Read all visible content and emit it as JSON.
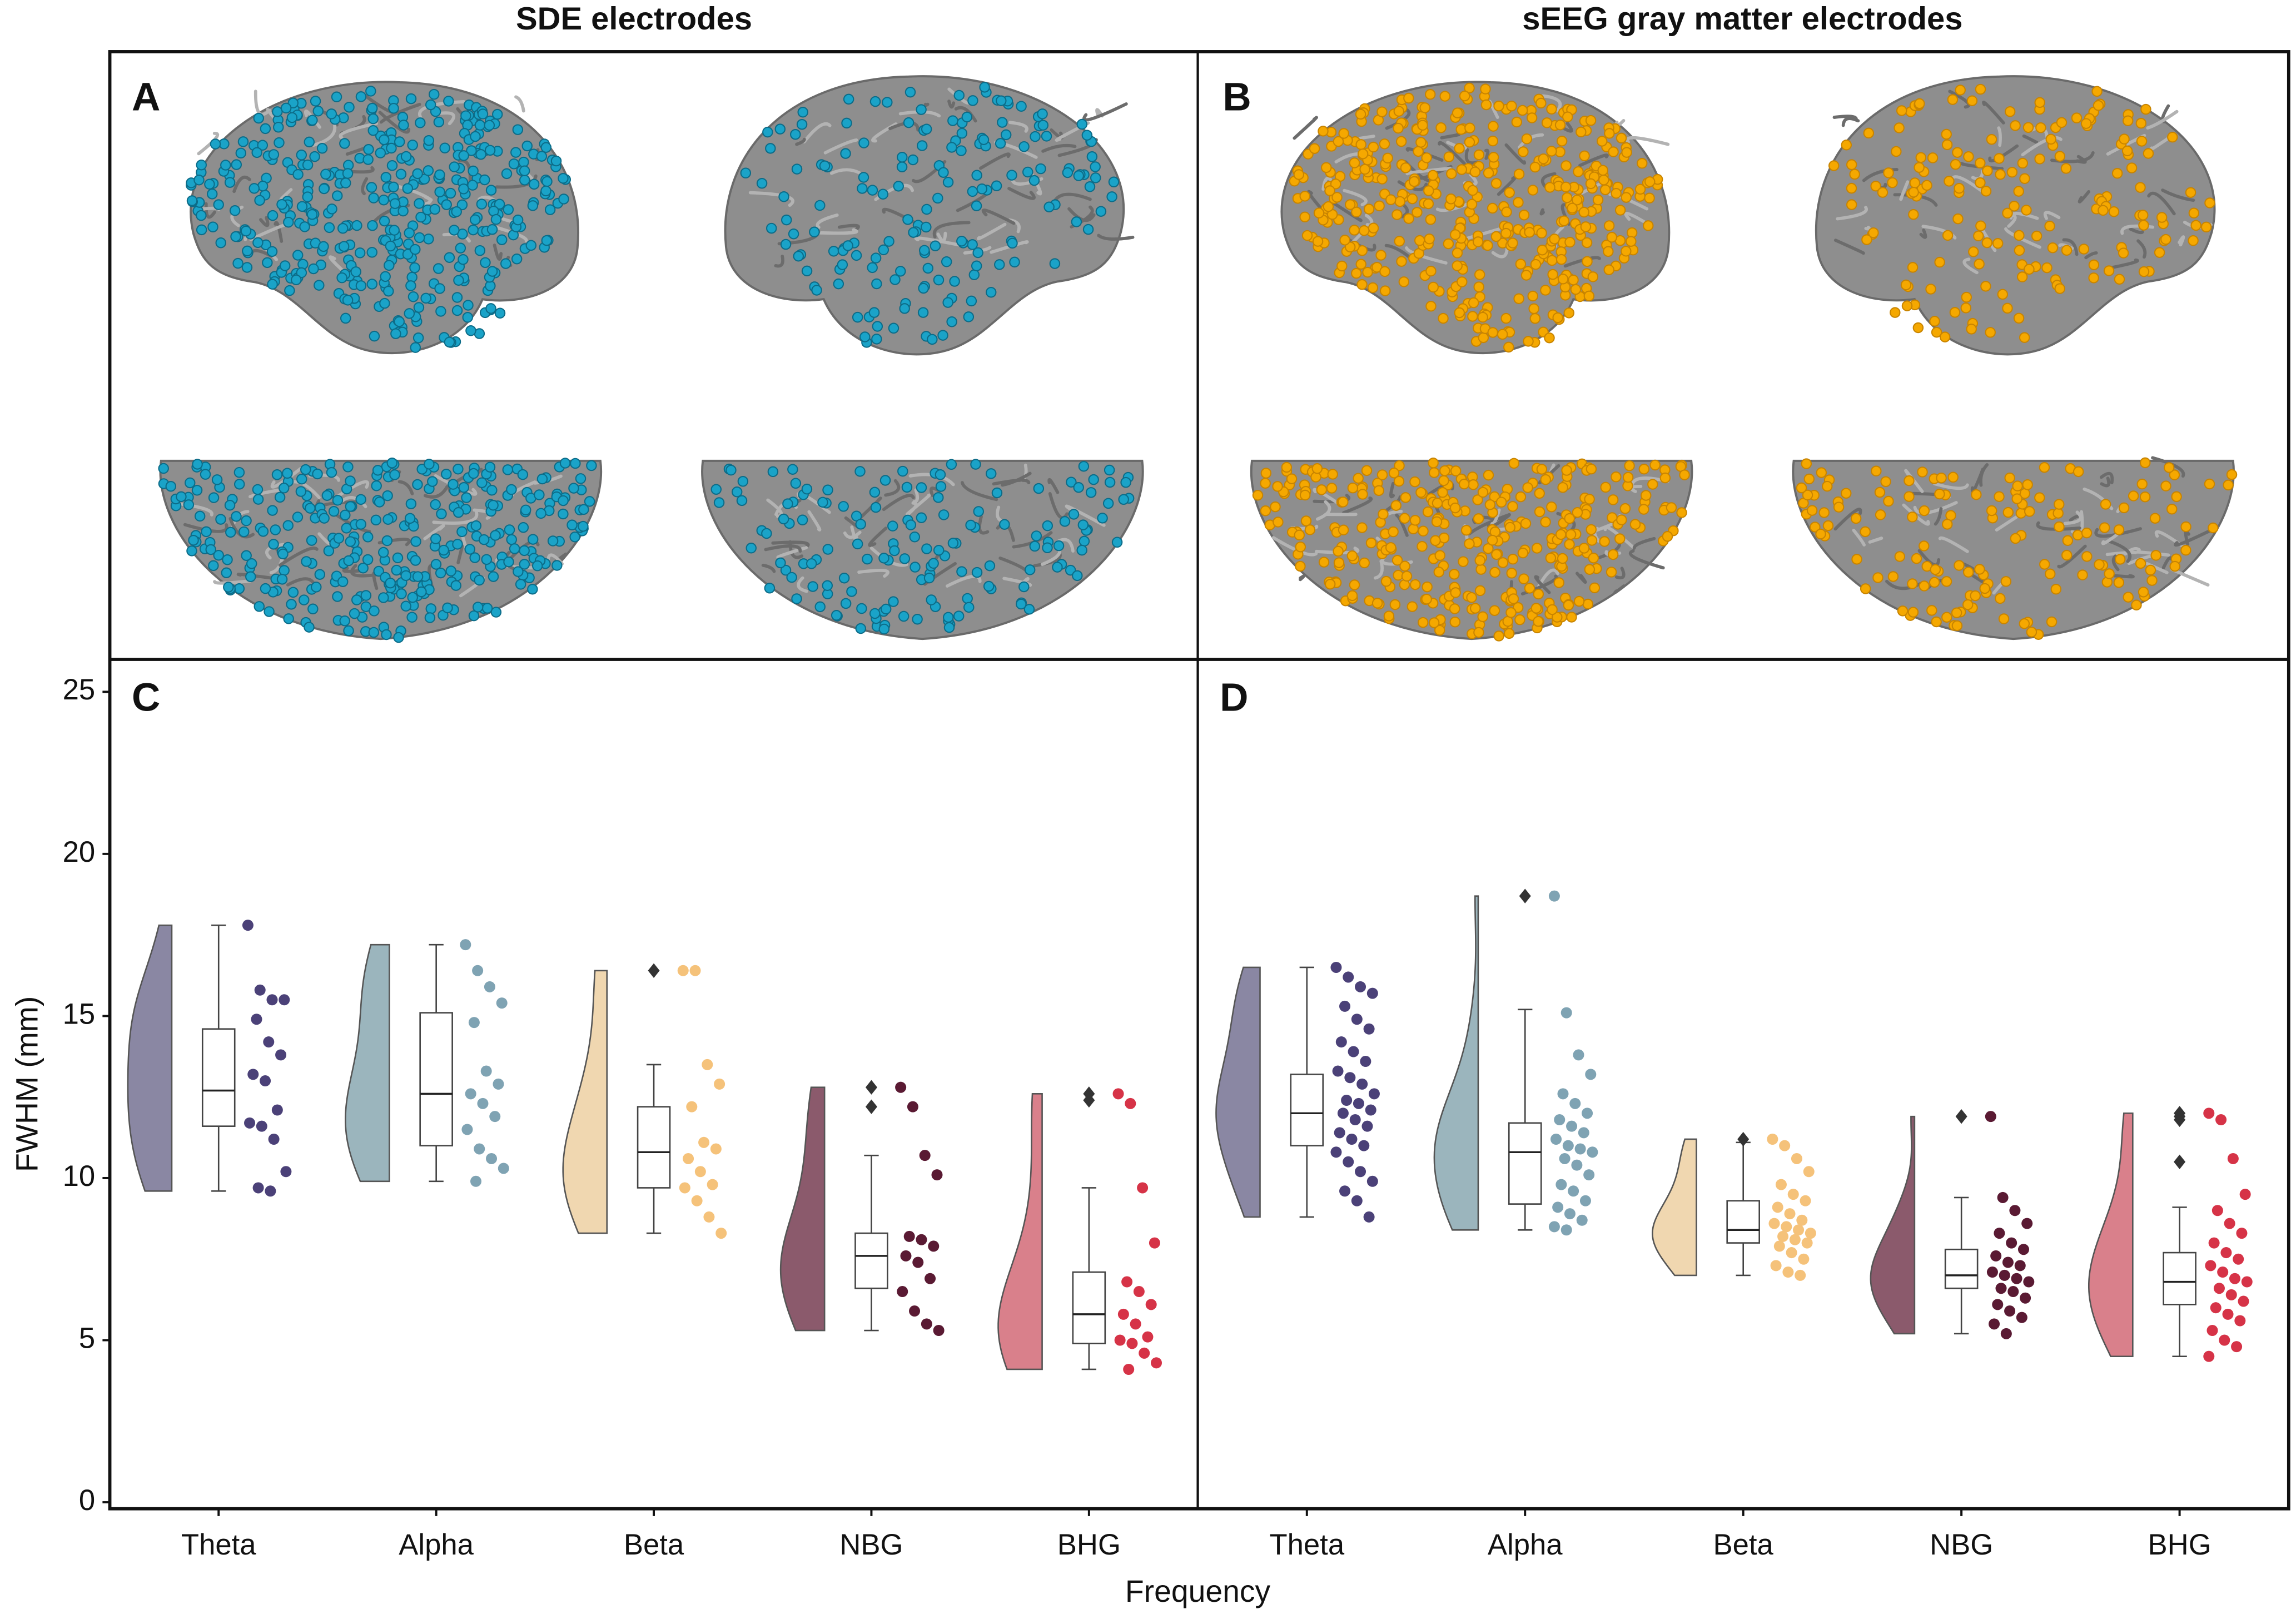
{
  "titles": [
    "SDE electrodes",
    "sEEG gray matter electrodes"
  ],
  "panel_labels": [
    "A",
    "B"
  ],
  "chart_data": [
    {
      "type": "raincloud",
      "label": "C",
      "ylabel": "FWHM (mm)",
      "xlabel": "Frequency",
      "categories": [
        "Theta",
        "Alpha",
        "Beta",
        "NBG",
        "BHG"
      ],
      "ylim": [
        -0.2,
        26
      ],
      "yticks": [
        0,
        5,
        10,
        15,
        20,
        25
      ],
      "groups": [
        {
          "violin_color": "#8a87a3",
          "point_color": "#4b4178",
          "box": {
            "whislo": 9.6,
            "q1": 11.6,
            "med": 12.7,
            "q3": 14.6,
            "whishi": 17.8
          },
          "fliers": [],
          "points": [
            17.8,
            15.8,
            15.5,
            15.5,
            14.9,
            14.2,
            13.8,
            13.2,
            13.0,
            12.1,
            11.7,
            11.6,
            11.2,
            10.2,
            9.7,
            9.6
          ]
        },
        {
          "violin_color": "#9bb5bd",
          "point_color": "#7fa3b3",
          "box": {
            "whislo": 9.9,
            "q1": 11.0,
            "med": 12.6,
            "q3": 15.1,
            "whishi": 17.2
          },
          "fliers": [],
          "points": [
            17.2,
            16.4,
            15.9,
            15.4,
            14.8,
            13.3,
            12.9,
            12.6,
            12.3,
            11.9,
            11.5,
            10.9,
            10.6,
            10.3,
            9.9
          ]
        },
        {
          "violin_color": "#f0d7b0",
          "point_color": "#f5c27a",
          "box": {
            "whislo": 8.3,
            "q1": 9.7,
            "med": 10.8,
            "q3": 12.2,
            "whishi": 13.5
          },
          "fliers": [
            16.4
          ],
          "points": [
            16.4,
            16.4,
            13.5,
            12.9,
            12.2,
            11.1,
            10.9,
            10.6,
            10.2,
            9.8,
            9.7,
            9.3,
            8.8,
            8.3
          ]
        },
        {
          "violin_color": "#8b5a6c",
          "point_color": "#5a1a33",
          "box": {
            "whislo": 5.3,
            "q1": 6.6,
            "med": 7.6,
            "q3": 8.3,
            "whishi": 10.7
          },
          "fliers": [
            12.8,
            12.2
          ],
          "points": [
            12.8,
            12.2,
            10.7,
            10.1,
            8.2,
            8.1,
            7.9,
            7.6,
            7.4,
            6.9,
            6.5,
            5.9,
            5.5,
            5.3
          ]
        },
        {
          "violin_color": "#d9808b",
          "point_color": "#d63347",
          "box": {
            "whislo": 4.1,
            "q1": 4.9,
            "med": 5.8,
            "q3": 7.1,
            "whishi": 9.7
          },
          "fliers": [
            12.6,
            12.4
          ],
          "points": [
            12.6,
            12.3,
            9.7,
            8.0,
            6.8,
            6.5,
            6.1,
            5.8,
            5.5,
            5.1,
            5.0,
            4.9,
            4.6,
            4.3,
            4.1
          ]
        }
      ]
    },
    {
      "type": "raincloud",
      "label": "D",
      "categories": [
        "Theta",
        "Alpha",
        "Beta",
        "NBG",
        "BHG"
      ],
      "ylim": [
        -0.2,
        26
      ],
      "groups": [
        {
          "violin_color": "#8a87a3",
          "point_color": "#4b4178",
          "box": {
            "whislo": 8.8,
            "q1": 11.0,
            "med": 12.0,
            "q3": 13.2,
            "whishi": 16.5
          },
          "fliers": [],
          "points": [
            16.5,
            16.2,
            15.9,
            15.7,
            15.3,
            14.9,
            14.6,
            14.2,
            13.9,
            13.6,
            13.3,
            13.1,
            12.9,
            12.6,
            12.4,
            12.3,
            12.1,
            12.0,
            11.8,
            11.6,
            11.4,
            11.2,
            11.0,
            10.8,
            10.5,
            10.2,
            9.9,
            9.6,
            9.3,
            8.8
          ]
        },
        {
          "violin_color": "#9bb5bd",
          "point_color": "#7fa3b3",
          "box": {
            "whislo": 8.4,
            "q1": 9.2,
            "med": 10.8,
            "q3": 11.7,
            "whishi": 15.2
          },
          "fliers": [
            18.7
          ],
          "points": [
            18.7,
            15.1,
            13.8,
            13.2,
            12.6,
            12.3,
            12.0,
            11.8,
            11.6,
            11.4,
            11.2,
            11.0,
            10.9,
            10.8,
            10.6,
            10.4,
            10.1,
            9.8,
            9.6,
            9.3,
            9.1,
            8.9,
            8.7,
            8.5,
            8.4
          ]
        },
        {
          "violin_color": "#f0d7b0",
          "point_color": "#f5c27a",
          "box": {
            "whislo": 7.0,
            "q1": 8.0,
            "med": 8.4,
            "q3": 9.3,
            "whishi": 11.1
          },
          "fliers": [
            11.2
          ],
          "points": [
            11.2,
            11.0,
            10.6,
            10.2,
            9.8,
            9.5,
            9.3,
            9.1,
            8.9,
            8.7,
            8.6,
            8.5,
            8.4,
            8.3,
            8.2,
            8.1,
            8.0,
            7.9,
            7.7,
            7.5,
            7.3,
            7.1,
            7.0
          ]
        },
        {
          "violin_color": "#8b5a6c",
          "point_color": "#5a1a33",
          "box": {
            "whislo": 5.2,
            "q1": 6.6,
            "med": 7.0,
            "q3": 7.8,
            "whishi": 9.4
          },
          "fliers": [
            11.9
          ],
          "points": [
            11.9,
            9.4,
            9.0,
            8.6,
            8.3,
            8.0,
            7.8,
            7.6,
            7.4,
            7.3,
            7.1,
            7.0,
            6.9,
            6.8,
            6.6,
            6.5,
            6.3,
            6.1,
            5.9,
            5.7,
            5.5,
            5.2
          ]
        },
        {
          "violin_color": "#d9808b",
          "point_color": "#d63347",
          "box": {
            "whislo": 4.5,
            "q1": 6.1,
            "med": 6.8,
            "q3": 7.7,
            "whishi": 9.1
          },
          "fliers": [
            12.0,
            11.9,
            11.8,
            10.5
          ],
          "points": [
            12.0,
            11.8,
            10.6,
            9.5,
            9.0,
            8.6,
            8.3,
            8.0,
            7.7,
            7.5,
            7.3,
            7.1,
            6.9,
            6.8,
            6.6,
            6.4,
            6.2,
            6.0,
            5.8,
            5.6,
            5.3,
            5.0,
            4.8,
            4.5
          ]
        }
      ]
    }
  ]
}
